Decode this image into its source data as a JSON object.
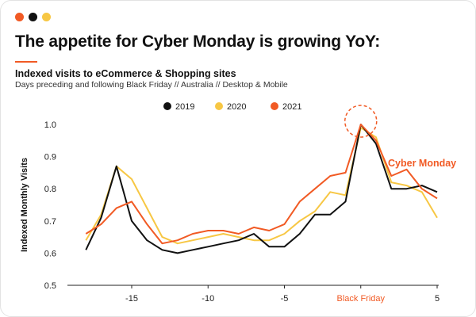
{
  "window": {
    "dot_colors": [
      "#f15a24",
      "#111111",
      "#f7c744"
    ]
  },
  "header": {
    "title": "The appetite for Cyber Monday is growing YoY:",
    "accent_color": "#f15a24",
    "subtitle": "Indexed visits to eCommerce & Shopping sites",
    "description": "Days preceding and following Black Friday  // Australia // Desktop & Mobile"
  },
  "chart_data": {
    "type": "line",
    "ylabel": "Indexed Monthly Visits",
    "xlabel": "",
    "xlim": [
      -19,
      5
    ],
    "ylim": [
      0.5,
      1.0
    ],
    "x_ticks": [
      {
        "value": -15,
        "label": "-15"
      },
      {
        "value": -10,
        "label": "-10"
      },
      {
        "value": -5,
        "label": "-5"
      },
      {
        "value": 0,
        "label": "Black Friday",
        "highlight": true
      },
      {
        "value": 5,
        "label": "5"
      }
    ],
    "y_ticks": [
      {
        "value": 0.5,
        "label": "0.5"
      },
      {
        "value": 0.6,
        "label": "0.6"
      },
      {
        "value": 0.7,
        "label": "0.7"
      },
      {
        "value": 0.8,
        "label": "0.8"
      },
      {
        "value": 0.9,
        "label": "0.9"
      },
      {
        "value": 1.0,
        "label": "1.0"
      }
    ],
    "legend_position": "top-center",
    "x": [
      -18,
      -17,
      -16,
      -15,
      -14,
      -13,
      -12,
      -11,
      -10,
      -9,
      -8,
      -7,
      -6,
      -5,
      -4,
      -3,
      -2,
      -1,
      0,
      1,
      2,
      3,
      4,
      5
    ],
    "series": [
      {
        "name": "2019",
        "color": "#111111",
        "values": [
          0.61,
          0.71,
          0.87,
          0.7,
          0.64,
          0.61,
          0.6,
          0.61,
          0.62,
          0.63,
          0.64,
          0.66,
          0.62,
          0.62,
          0.66,
          0.72,
          0.72,
          0.76,
          1.0,
          0.94,
          0.8,
          0.8,
          0.81,
          0.79
        ]
      },
      {
        "name": "2020",
        "color": "#f7c744",
        "values": [
          0.64,
          0.72,
          0.87,
          0.83,
          0.74,
          0.65,
          0.63,
          0.64,
          0.65,
          0.66,
          0.65,
          0.64,
          0.64,
          0.66,
          0.7,
          0.73,
          0.79,
          0.78,
          0.99,
          0.96,
          0.82,
          0.81,
          0.79,
          0.71
        ]
      },
      {
        "name": "2021",
        "color": "#f15a24",
        "values": [
          0.66,
          0.69,
          0.74,
          0.76,
          0.69,
          0.63,
          0.64,
          0.66,
          0.67,
          0.67,
          0.66,
          0.68,
          0.67,
          0.69,
          0.76,
          0.8,
          0.84,
          0.85,
          1.0,
          0.95,
          0.84,
          0.86,
          0.8,
          0.77
        ]
      }
    ],
    "annotations": [
      {
        "text": "Cyber Monday",
        "color": "#f15a24"
      }
    ],
    "highlight_circle": {
      "x": 0,
      "y": 1.0,
      "color": "#f15a24"
    }
  }
}
